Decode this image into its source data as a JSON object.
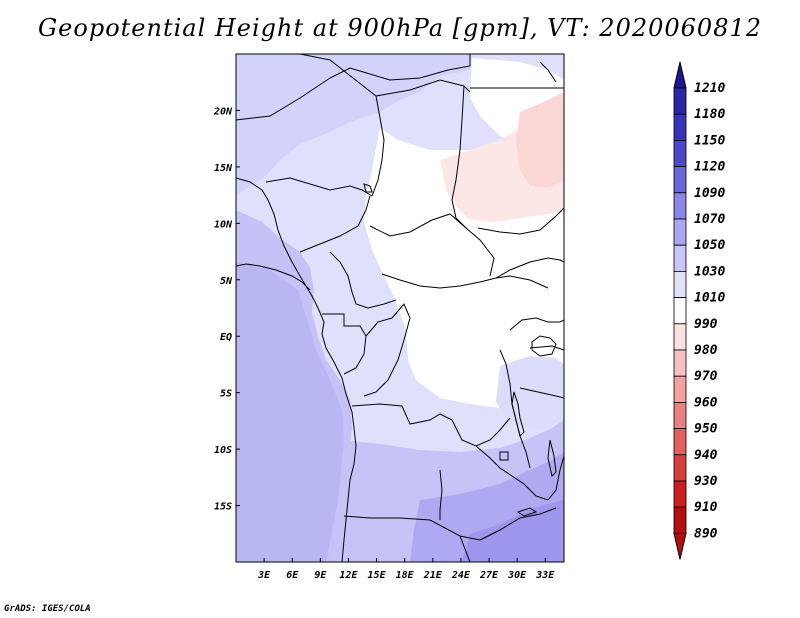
{
  "title": "Geopotential Height at 900hPa [gpm], VT: 2020060812",
  "credit": "GrADS: IGES/COLA",
  "map": {
    "lon_range": [
      0,
      35
    ],
    "lat_range": [
      -20,
      25
    ],
    "x_ticks": [
      {
        "value": 3,
        "label": "3E"
      },
      {
        "value": 6,
        "label": "6E"
      },
      {
        "value": 9,
        "label": "9E"
      },
      {
        "value": 12,
        "label": "12E"
      },
      {
        "value": 15,
        "label": "15E"
      },
      {
        "value": 18,
        "label": "18E"
      },
      {
        "value": 21,
        "label": "21E"
      },
      {
        "value": 24,
        "label": "24E"
      },
      {
        "value": 27,
        "label": "27E"
      },
      {
        "value": 30,
        "label": "30E"
      },
      {
        "value": 33,
        "label": "33E"
      }
    ],
    "y_ticks": [
      {
        "value": 20,
        "label": "20N"
      },
      {
        "value": 15,
        "label": "15N"
      },
      {
        "value": 10,
        "label": "10N"
      },
      {
        "value": 5,
        "label": "5N"
      },
      {
        "value": 0,
        "label": "EQ"
      },
      {
        "value": -5,
        "label": "5S"
      },
      {
        "value": -10,
        "label": "10S"
      },
      {
        "value": -15,
        "label": "15S"
      }
    ]
  },
  "colorbar": {
    "levels": [
      "1210",
      "1180",
      "1150",
      "1120",
      "1090",
      "1070",
      "1050",
      "1030",
      "1010",
      "990",
      "980",
      "970",
      "960",
      "950",
      "940",
      "930",
      "910",
      "890"
    ],
    "colors": [
      "#1e1696",
      "#2a27a8",
      "#3835bc",
      "#4c48cc",
      "#6a66da",
      "#8a86e6",
      "#aaa6f0",
      "#c8c6f8",
      "#e2e2fc",
      "#ffffff",
      "#fde0e0",
      "#f8c0c0",
      "#f2a0a0",
      "#ea8080",
      "#e26060",
      "#d84040",
      "#cc2020",
      "#b41010"
    ]
  }
}
